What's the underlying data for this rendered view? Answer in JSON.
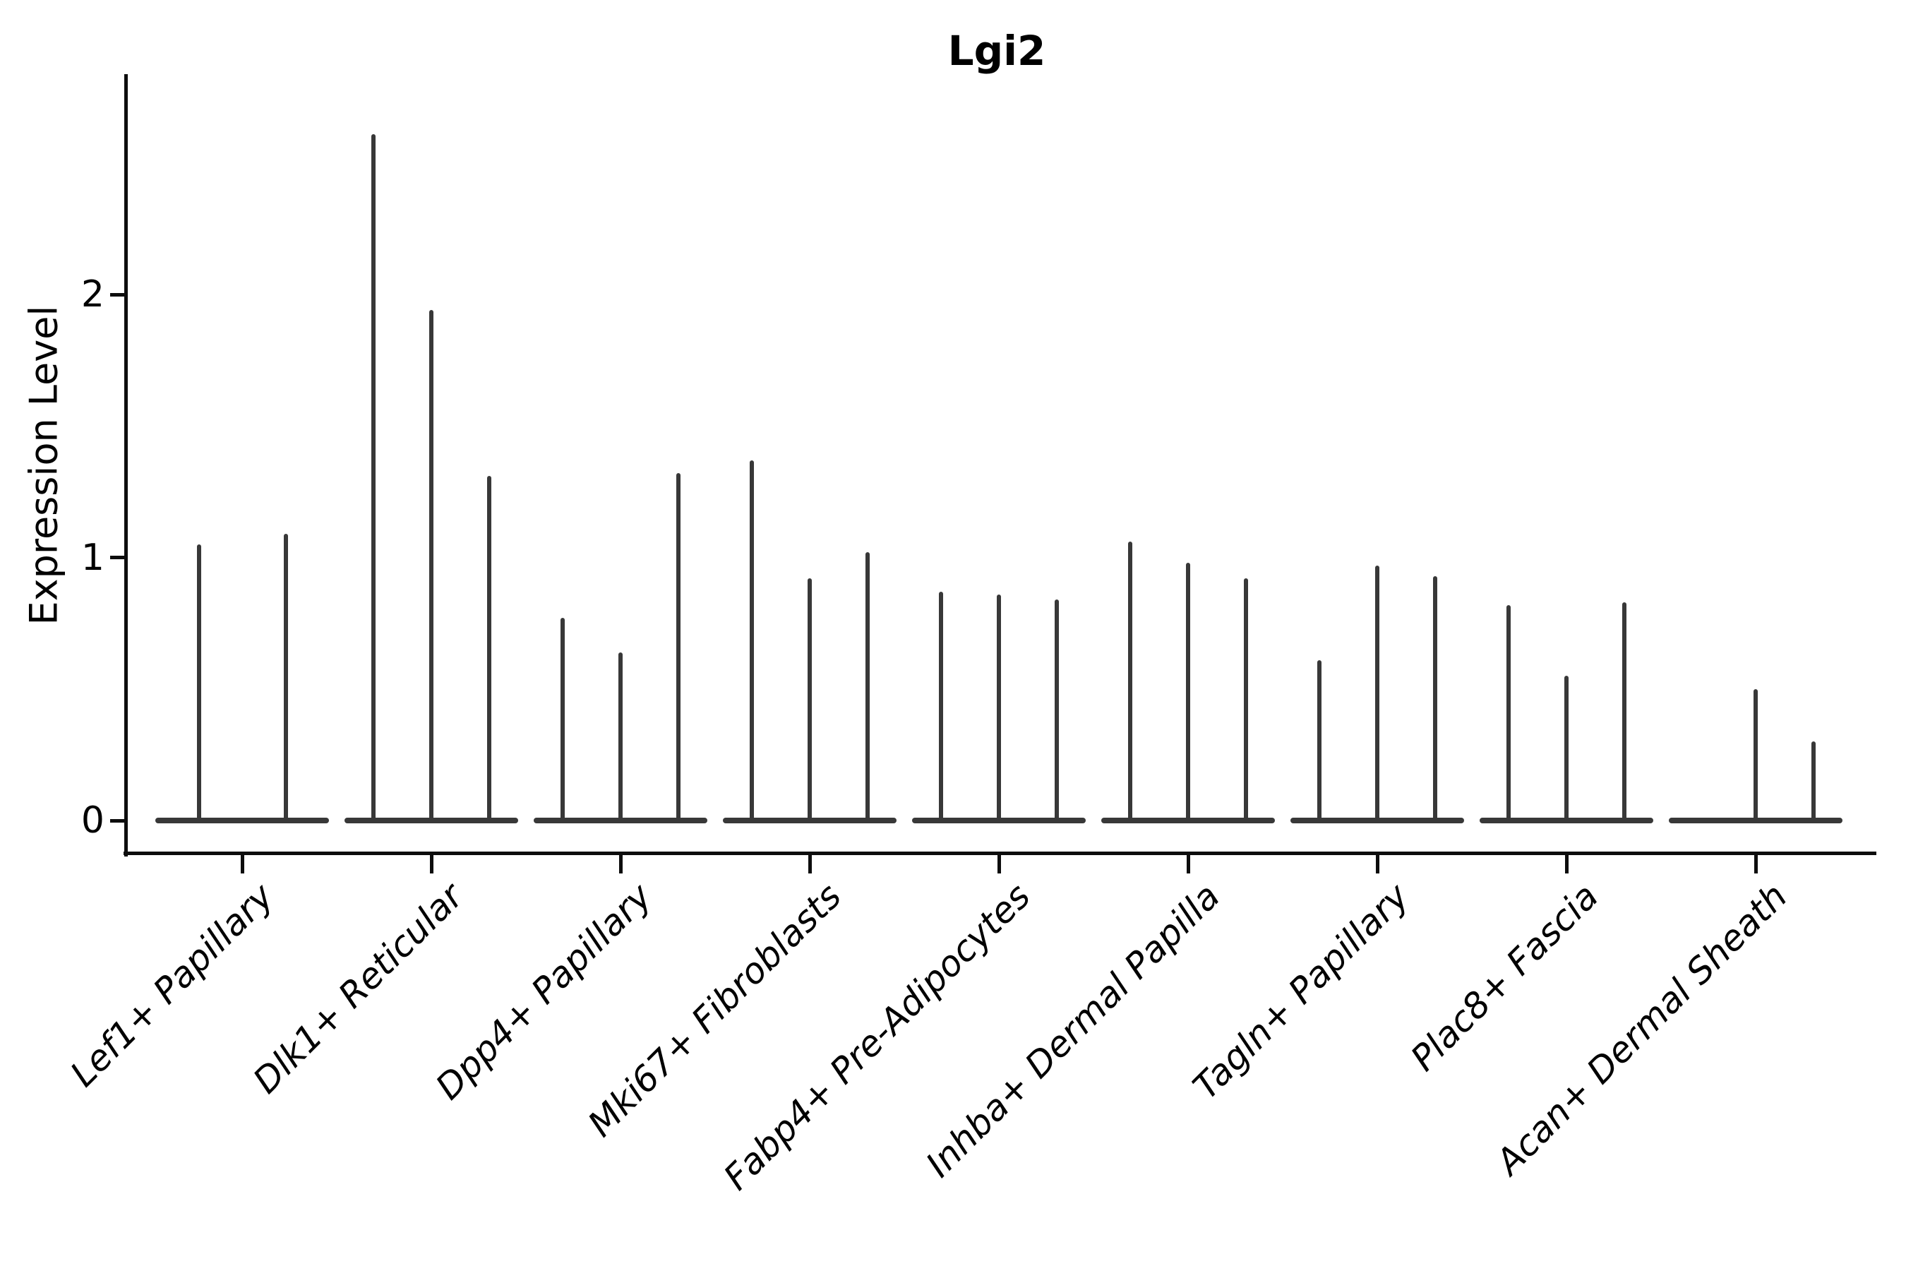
{
  "figure": {
    "background": "#ffffff",
    "violin_color": "#383838",
    "axis_color": "#0d0d0d",
    "text_color": "#000000"
  },
  "chart_data": {
    "type": "violin",
    "title": "Lgi2",
    "xlabel": "",
    "ylabel": "Expression Level",
    "yticks": [
      0,
      1,
      2
    ],
    "ylim": [
      -0.12,
      2.84
    ],
    "grid": false,
    "legend_position": "none",
    "style_note": "Seurat-style single-cell expression violin plot; sparse expression collapses each violin to a thin vertical density spike rising from a flat zero-expression baseline; x tick labels rotated 45 degrees, italic; only left and bottom spines shown",
    "categories": [
      "Lef1+ Papillary",
      "Dlk1+ Reticular",
      "Dpp4+ Papillary",
      "Mki67+ Fibroblasts",
      "Fabp4+ Pre-Adipocytes",
      "Inhba+ Dermal Papilla",
      "Tagln+ Papillary",
      "Plac8+ Fascia",
      "Acan+ Dermal Sheath"
    ],
    "groups": [
      {
        "category": "Lef1+ Papillary",
        "spike_max_expression": [
          1.05,
          1.09
        ]
      },
      {
        "category": "Dlk1+ Reticular",
        "spike_max_expression": [
          2.61,
          1.94,
          1.31
        ]
      },
      {
        "category": "Dpp4+ Papillary",
        "spike_max_expression": [
          0.77,
          0.64,
          1.32
        ]
      },
      {
        "category": "Mki67+ Fibroblasts",
        "spike_max_expression": [
          1.37,
          0.92,
          1.02
        ]
      },
      {
        "category": "Fabp4+ Pre-Adipocytes",
        "spike_max_expression": [
          0.87,
          0.86,
          0.84
        ]
      },
      {
        "category": "Inhba+ Dermal Papilla",
        "spike_max_expression": [
          1.06,
          0.98,
          0.92
        ]
      },
      {
        "category": "Tagln+ Papillary",
        "spike_max_expression": [
          0.61,
          0.97,
          0.93
        ]
      },
      {
        "category": "Plac8+ Fascia",
        "spike_max_expression": [
          0.82,
          0.55,
          0.83
        ]
      },
      {
        "category": "Acan+ Dermal Sheath",
        "spike_max_expression": [
          0.0,
          0.5,
          0.3
        ]
      }
    ]
  }
}
